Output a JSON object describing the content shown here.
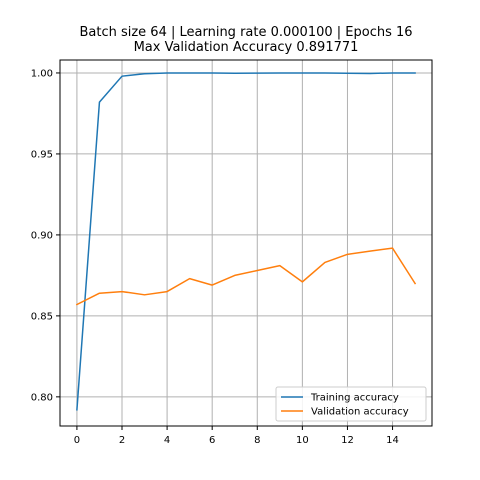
{
  "chart_data": {
    "type": "line",
    "title_lines": [
      "Batch size 64 | Learning rate 0.000100 | Epochs 16",
      "Max Validation Accuracy 0.891771"
    ],
    "xlabel": "",
    "ylabel": "",
    "x": [
      0,
      1,
      2,
      3,
      4,
      5,
      6,
      7,
      8,
      9,
      10,
      11,
      12,
      13,
      14,
      15
    ],
    "xlim": [
      -0.75,
      15.75
    ],
    "ylim": [
      0.782,
      1.008
    ],
    "xticks": [
      0,
      2,
      4,
      6,
      8,
      10,
      12,
      14
    ],
    "xtick_labels": [
      "0",
      "2",
      "4",
      "6",
      "8",
      "10",
      "12",
      "14"
    ],
    "yticks": [
      0.8,
      0.85,
      0.9,
      0.95,
      1.0
    ],
    "ytick_labels": [
      "0.80",
      "0.85",
      "0.90",
      "0.95",
      "1.00"
    ],
    "grid": true,
    "legend_position": "lower-right",
    "series": [
      {
        "name": "Training accuracy",
        "color": "#1f77b4",
        "values": [
          0.792,
          0.982,
          0.998,
          0.9995,
          1.0,
          1.0,
          1.0,
          0.9998,
          0.9999,
          1.0,
          1.0,
          1.0,
          0.9998,
          0.9997,
          1.0,
          1.0
        ]
      },
      {
        "name": "Validation accuracy",
        "color": "#ff7f0e",
        "values": [
          0.857,
          0.864,
          0.865,
          0.863,
          0.865,
          0.873,
          0.869,
          0.875,
          0.878,
          0.881,
          0.871,
          0.883,
          0.888,
          0.89,
          0.8918,
          0.87
        ]
      }
    ]
  }
}
